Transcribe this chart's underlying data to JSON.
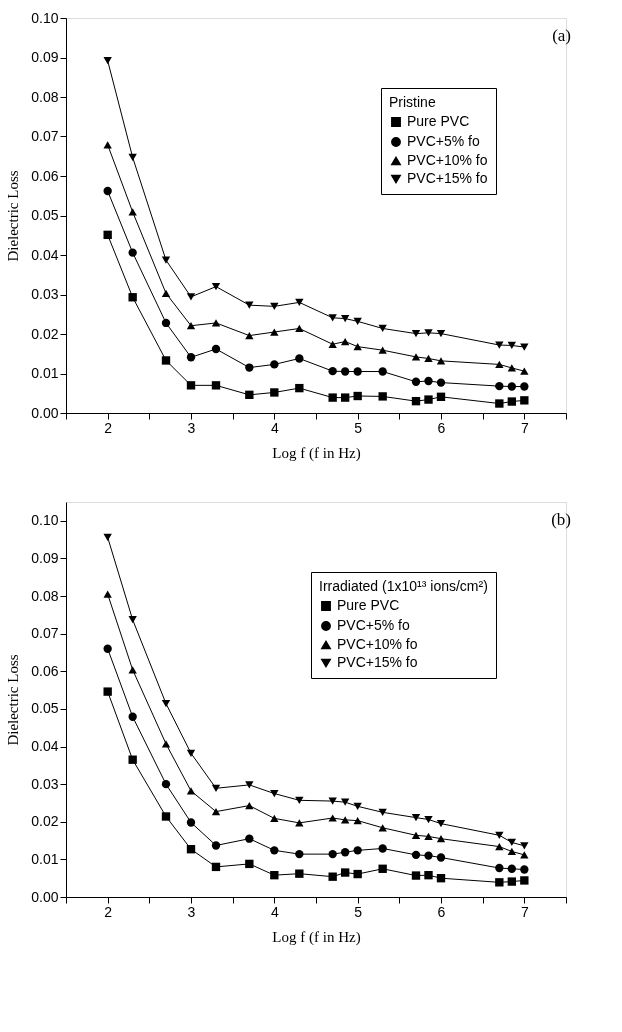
{
  "chart_data": [
    {
      "type": "line",
      "xlabel": "Log f (f in Hz)",
      "ylabel": "Dielectric Loss",
      "legend_title": "Pristine",
      "legend": "top right",
      "grid": false,
      "line_style": "solid",
      "annotations": [
        "(a)"
      ],
      "x": [
        2,
        2.3,
        2.7,
        3,
        3.3,
        3.7,
        4,
        4.3,
        4.7,
        4.85,
        5,
        5.3,
        5.7,
        5.85,
        6,
        6.7,
        6.85,
        7
      ],
      "xlim": [
        1.5,
        7.5
      ],
      "xticks": [
        {
          "value": 1.5,
          "label": null
        },
        2,
        {
          "value": 2.5,
          "label": null
        },
        3,
        {
          "value": 3.5,
          "label": null
        },
        4,
        {
          "value": 4.5,
          "label": null
        },
        5,
        {
          "value": 5.5,
          "label": null
        },
        6,
        {
          "value": 6.5,
          "label": null
        },
        7,
        {
          "value": 7.5,
          "label": null
        }
      ],
      "ylim": [
        0,
        0.1
      ],
      "yticks": [
        {
          "value": 0,
          "label": "0.00"
        },
        {
          "value": 0.01,
          "label": "0.01"
        },
        {
          "value": 0.02,
          "label": "0.02"
        },
        {
          "value": 0.03,
          "label": "0.03"
        },
        {
          "value": 0.04,
          "label": "0.04"
        },
        {
          "value": 0.05,
          "label": "0.05"
        },
        {
          "value": 0.06,
          "label": "0.06"
        },
        {
          "value": 0.07,
          "label": "0.07"
        },
        {
          "value": 0.08,
          "label": "0.08"
        },
        {
          "value": 0.09,
          "label": "0.09"
        },
        {
          "value": 0.1,
          "label": "0.10"
        }
      ],
      "series": [
        {
          "name": "Pure PVC",
          "color": "#000000",
          "marker": "square",
          "values": [
            0.0451,
            0.0293,
            0.0133,
            0.007,
            0.007,
            0.0046,
            0.0052,
            0.0063,
            0.0039,
            0.0039,
            0.0043,
            0.0042,
            0.003,
            0.0034,
            0.0041,
            0.0024,
            0.0029,
            0.0032
          ]
        },
        {
          "name": "PVC+5% fo",
          "color": "#000000",
          "marker": "circle",
          "values": [
            0.0562,
            0.0406,
            0.0228,
            0.0141,
            0.0162,
            0.0115,
            0.0123,
            0.0138,
            0.0106,
            0.0105,
            0.0105,
            0.0105,
            0.0079,
            0.0081,
            0.0077,
            0.0068,
            0.0067,
            0.0067
          ]
        },
        {
          "name": "PVC+10% fo",
          "color": "#000000",
          "marker": "triangle",
          "values": [
            0.0679,
            0.0509,
            0.0303,
            0.0221,
            0.0228,
            0.0196,
            0.0205,
            0.0214,
            0.0174,
            0.0181,
            0.0168,
            0.0159,
            0.0142,
            0.0138,
            0.0132,
            0.0123,
            0.0114,
            0.0106
          ]
        },
        {
          "name": "PVC+15% fo",
          "color": "#000000",
          "marker": "triangle-down",
          "values": [
            0.0892,
            0.0647,
            0.0387,
            0.0294,
            0.032,
            0.0273,
            0.027,
            0.028,
            0.0241,
            0.0239,
            0.0232,
            0.0214,
            0.0201,
            0.0203,
            0.0201,
            0.0172,
            0.0171,
            0.0167
          ]
        }
      ]
    },
    {
      "type": "line",
      "xlabel": "Log f (f in Hz)",
      "ylabel": "Dielectric Loss",
      "legend_title": "Irradiated (1x10¹³ ions/cm²)",
      "legend": "top right",
      "grid": false,
      "line_style": "solid",
      "annotations": [
        "(b)"
      ],
      "x": [
        2,
        2.3,
        2.7,
        3,
        3.3,
        3.7,
        4,
        4.3,
        4.7,
        4.85,
        5,
        5.3,
        5.7,
        5.85,
        6,
        6.7,
        6.85,
        7
      ],
      "xlim": [
        1.5,
        7.5
      ],
      "xticks": [
        {
          "value": 1.5,
          "label": null
        },
        2,
        {
          "value": 2.5,
          "label": null
        },
        3,
        {
          "value": 3.5,
          "label": null
        },
        4,
        {
          "value": 4.5,
          "label": null
        },
        5,
        {
          "value": 5.5,
          "label": null
        },
        6,
        {
          "value": 6.5,
          "label": null
        },
        7,
        {
          "value": 7.5,
          "label": null
        }
      ],
      "ylim": [
        0,
        0.105
      ],
      "yticks": [
        {
          "value": 0,
          "label": "0.00"
        },
        {
          "value": 0.01,
          "label": "0.01"
        },
        {
          "value": 0.02,
          "label": "0.02"
        },
        {
          "value": 0.03,
          "label": "0.03"
        },
        {
          "value": 0.04,
          "label": "0.04"
        },
        {
          "value": 0.05,
          "label": "0.05"
        },
        {
          "value": 0.06,
          "label": "0.06"
        },
        {
          "value": 0.07,
          "label": "0.07"
        },
        {
          "value": 0.08,
          "label": "0.08"
        },
        {
          "value": 0.09,
          "label": "0.09"
        },
        {
          "value": 0.1,
          "label": "0.10"
        }
      ],
      "series": [
        {
          "name": "Pure PVC",
          "color": "#000000",
          "marker": "square",
          "values": [
            0.0546,
            0.0365,
            0.0214,
            0.0127,
            0.008,
            0.0088,
            0.0058,
            0.0062,
            0.0054,
            0.0065,
            0.0061,
            0.0075,
            0.0057,
            0.0058,
            0.005,
            0.0039,
            0.0041,
            0.0044
          ]
        },
        {
          "name": "PVC+5% fo",
          "color": "#000000",
          "marker": "circle",
          "values": [
            0.066,
            0.0479,
            0.03,
            0.0198,
            0.0137,
            0.0155,
            0.0124,
            0.0114,
            0.0114,
            0.0119,
            0.0124,
            0.0129,
            0.0112,
            0.011,
            0.0105,
            0.0077,
            0.0075,
            0.0073
          ]
        },
        {
          "name": "PVC+10% fo",
          "color": "#000000",
          "marker": "triangle",
          "values": [
            0.0805,
            0.0604,
            0.0407,
            0.0282,
            0.0227,
            0.0243,
            0.0209,
            0.0197,
            0.021,
            0.0205,
            0.0203,
            0.0184,
            0.0164,
            0.0161,
            0.0155,
            0.0134,
            0.0121,
            0.0112
          ]
        },
        {
          "name": "PVC+15% fo",
          "color": "#000000",
          "marker": "triangle-down",
          "values": [
            0.0956,
            0.0737,
            0.0514,
            0.0382,
            0.0289,
            0.0298,
            0.0275,
            0.0257,
            0.0255,
            0.0252,
            0.0241,
            0.0225,
            0.0211,
            0.0206,
            0.0195,
            0.0164,
            0.0145,
            0.0136
          ]
        }
      ]
    }
  ]
}
